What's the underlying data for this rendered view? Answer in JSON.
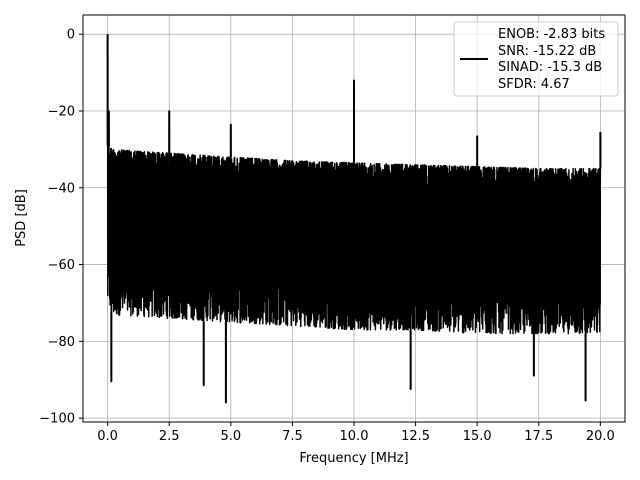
{
  "chart_data": {
    "type": "line",
    "xlabel": "Frequency [MHz]",
    "ylabel": "PSD [dB]",
    "xlim": [
      -1.0,
      21.0
    ],
    "ylim": [
      -101,
      5
    ],
    "xticks": [
      0.0,
      2.5,
      5.0,
      7.5,
      10.0,
      12.5,
      15.0,
      17.5,
      20.0
    ],
    "xtick_labels": [
      "0.0",
      "2.5",
      "5.0",
      "7.5",
      "10.0",
      "12.5",
      "15.0",
      "17.5",
      "20.0"
    ],
    "yticks": [
      0,
      -20,
      -40,
      -60,
      -80,
      -100
    ],
    "ytick_labels": [
      "0",
      "−20",
      "−40",
      "−60",
      "−80",
      "−100"
    ],
    "grid": true,
    "legend_position": "top-right",
    "series": [
      {
        "color": "#000000",
        "noise_floor_envelope": {
          "x": [
            0.0,
            0.2,
            2.5,
            5.0,
            7.5,
            10.0,
            12.5,
            15.0,
            17.5,
            20.0
          ],
          "upper": [
            -29,
            -30,
            -31,
            -32,
            -33,
            -33.5,
            -34,
            -34.5,
            -35,
            -35
          ],
          "lower": [
            -70,
            -73,
            -74,
            -75,
            -76,
            -77,
            -77,
            -78,
            -78,
            -78
          ]
        },
        "peaks": [
          {
            "x": 0.0,
            "y": 0
          },
          {
            "x": 0.05,
            "y": -20
          },
          {
            "x": 2.5,
            "y": -20
          },
          {
            "x": 5.0,
            "y": -23.5
          },
          {
            "x": 10.0,
            "y": -12
          },
          {
            "x": 15.0,
            "y": -26.5
          },
          {
            "x": 20.0,
            "y": -25.5
          }
        ],
        "dips": [
          {
            "x": 0.15,
            "y": -90.5
          },
          {
            "x": 3.9,
            "y": -91.5
          },
          {
            "x": 4.8,
            "y": -96
          },
          {
            "x": 12.3,
            "y": -92.5
          },
          {
            "x": 17.3,
            "y": -89
          },
          {
            "x": 19.4,
            "y": -95.5
          }
        ]
      }
    ],
    "legend": {
      "lines": [
        "ENOB: -2.83 bits",
        "SNR: -15.22 dB",
        "SINAD: -15.3 dB",
        "SFDR: 4.67"
      ]
    }
  }
}
